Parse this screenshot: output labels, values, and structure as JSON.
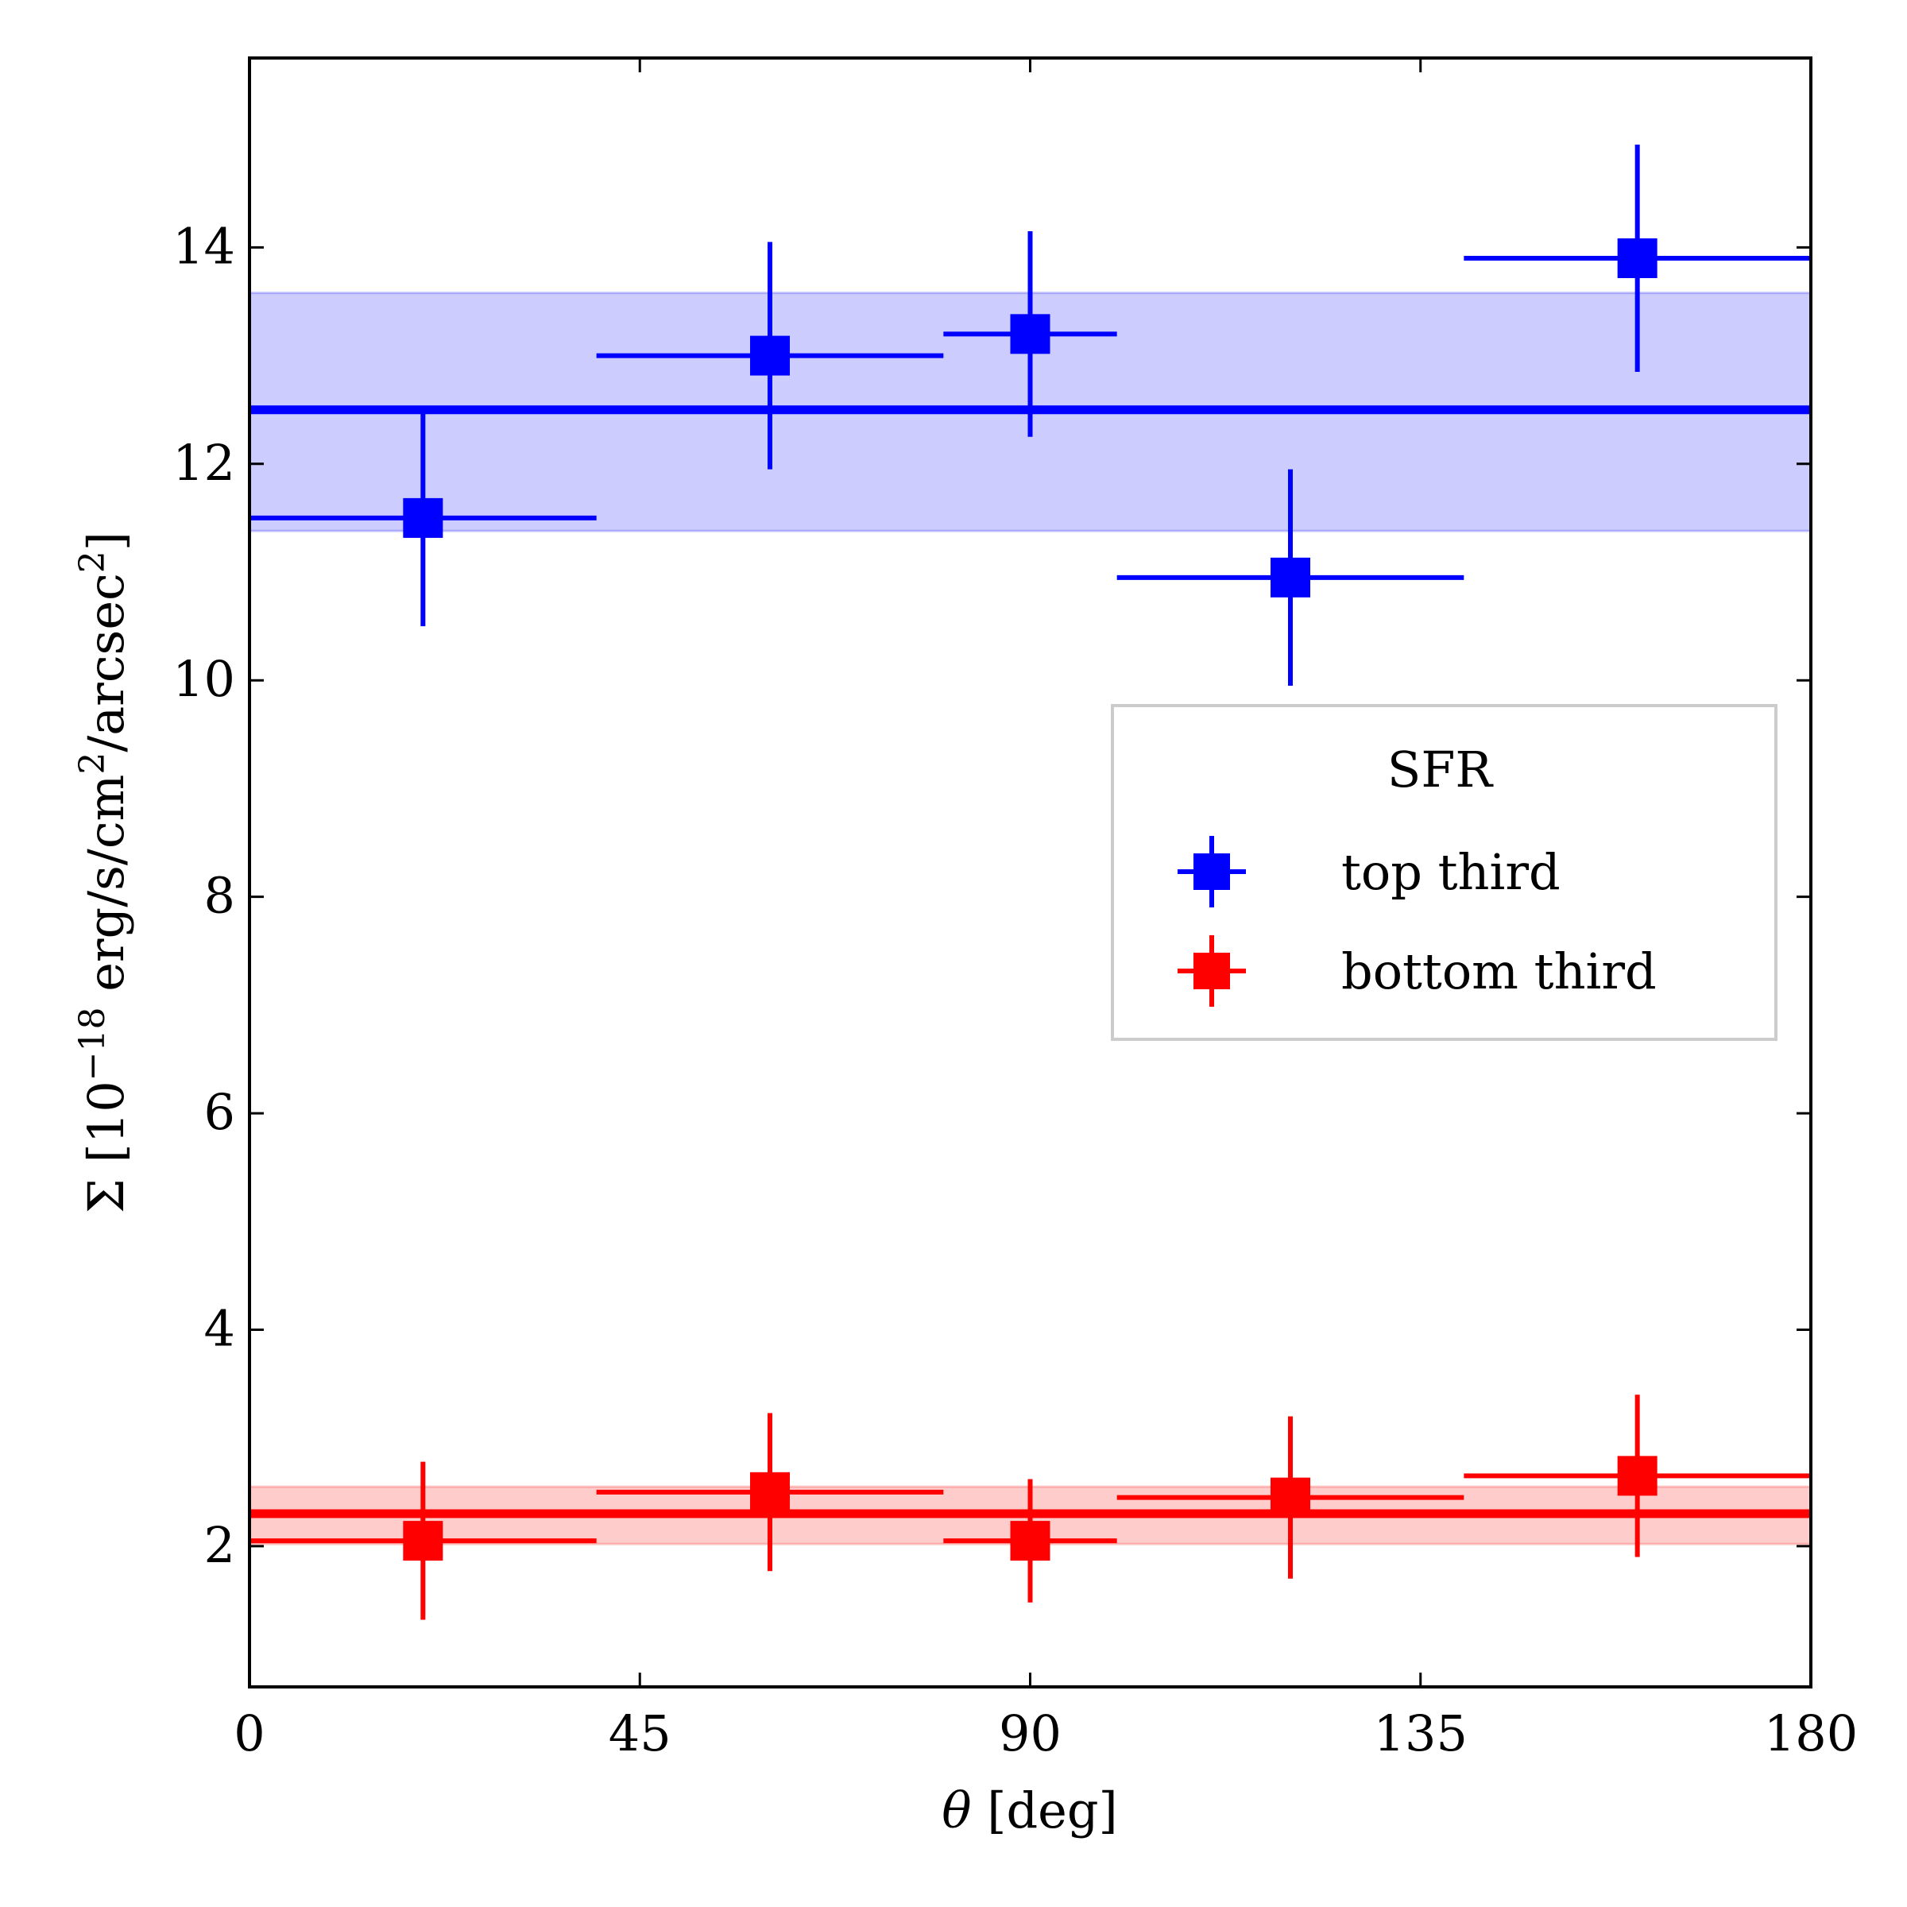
{
  "chart_data": {
    "type": "scatter",
    "xlabel_symbol": "θ",
    "xlabel_unit": "[deg]",
    "ylabel_prefix": "Σ [10",
    "ylabel_exp": "−18",
    "ylabel_mid": " erg/s/cm",
    "ylabel_sq1": "2",
    "ylabel_mid2": "/arcsec",
    "ylabel_sq2": "2",
    "ylabel_suffix": "]",
    "xlim": [
      0,
      180
    ],
    "ylim": [
      0.7,
      15.75
    ],
    "xticks": [
      0,
      45,
      90,
      135,
      180
    ],
    "yticks": [
      2,
      4,
      6,
      8,
      10,
      12,
      14
    ],
    "legend_title": "SFR",
    "legend_position": "center-right",
    "series": [
      {
        "name": "top third",
        "color": "#0000ff",
        "mean": 12.5,
        "band": [
          11.38,
          13.58
        ],
        "points": [
          {
            "x": 20,
            "xlo": 0,
            "xhi": 40,
            "y": 11.5,
            "yerr": 1.0
          },
          {
            "x": 60,
            "xlo": 40,
            "xhi": 80,
            "y": 13.0,
            "yerr": 1.05
          },
          {
            "x": 90,
            "xlo": 80,
            "xhi": 100,
            "y": 13.2,
            "yerr": 0.95
          },
          {
            "x": 120,
            "xlo": 100,
            "xhi": 140,
            "y": 10.95,
            "yerr": 1.0
          },
          {
            "x": 160,
            "xlo": 140,
            "xhi": 180,
            "y": 13.9,
            "yerr": 1.05
          }
        ]
      },
      {
        "name": "bottom third",
        "color": "#ff0000",
        "mean": 2.3,
        "band": [
          2.02,
          2.55
        ],
        "points": [
          {
            "x": 20,
            "xlo": 0,
            "xhi": 40,
            "y": 2.05,
            "yerr": 0.73
          },
          {
            "x": 60,
            "xlo": 40,
            "xhi": 80,
            "y": 2.5,
            "yerr": 0.73
          },
          {
            "x": 90,
            "xlo": 80,
            "xhi": 100,
            "y": 2.05,
            "yerr": 0.57
          },
          {
            "x": 120,
            "xlo": 100,
            "xhi": 140,
            "y": 2.45,
            "yerr": 0.75
          },
          {
            "x": 160,
            "xlo": 140,
            "xhi": 180,
            "y": 2.65,
            "yerr": 0.75
          }
        ]
      }
    ]
  }
}
